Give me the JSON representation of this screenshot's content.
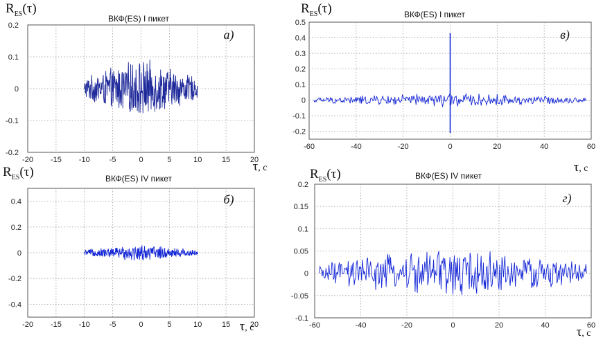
{
  "chart_data": [
    {
      "id": "a",
      "type": "line",
      "title": "ВКФ(ES) I пикет",
      "panel_label": "а)",
      "y_label_main": "R",
      "y_label_sub": "ES",
      "y_label_arg": "(τ)",
      "x_label_main": "",
      "x_label_unit": "",
      "xlim": [
        -20,
        20
      ],
      "ylim": [
        -0.2,
        0.2
      ],
      "x_ticks": [
        -20,
        -15,
        -10,
        -5,
        0,
        5,
        10,
        15,
        20
      ],
      "x_tick_labels": [
        "-20",
        "-15",
        "-10",
        "-5",
        "0",
        "5",
        "10",
        "15",
        "20"
      ],
      "y_ticks": [
        -0.2,
        -0.1,
        0,
        0.1,
        0.2
      ],
      "y_tick_labels": [
        "-0.2",
        "-0.1",
        "0",
        "0.1",
        "0.2"
      ],
      "grid": true,
      "color": "#1f2a9a",
      "series": [
        {
          "signal": "noise",
          "x_range": [
            -10,
            10
          ],
          "peak_amplitude": 0.1,
          "spike": null
        }
      ]
    },
    {
      "id": "v",
      "type": "line",
      "title": "ВКФ(ES) I пикет",
      "panel_label": "в)",
      "y_label_main": "R",
      "y_label_sub": "ES",
      "y_label_arg": "(τ)",
      "x_label_main": "τ",
      "x_label_unit": ", с",
      "xlim": [
        -60,
        60
      ],
      "ylim": [
        -0.25,
        0.5
      ],
      "x_ticks": [
        -60,
        -40,
        -20,
        0,
        20,
        40,
        60
      ],
      "x_tick_labels": [
        "-60",
        "-40",
        "-20",
        "0",
        "20",
        "40",
        "60"
      ],
      "y_ticks": [
        -0.2,
        -0.1,
        0,
        0.1,
        0.2,
        0.3,
        0.4,
        0.5
      ],
      "y_tick_labels": [
        "-0.2",
        "-0.1",
        "0",
        "0.1",
        "0.2",
        "0.3",
        "0.4",
        "0.5"
      ],
      "grid": true,
      "color": "#1426d6",
      "series": [
        {
          "signal": "noise",
          "x_range": [
            -58,
            58
          ],
          "peak_amplitude": 0.05,
          "spike": {
            "x": 0,
            "max": 0.43,
            "min": -0.21
          }
        }
      ]
    },
    {
      "id": "b",
      "type": "line",
      "title": "ВКФ(ES) IV пикет",
      "panel_label": "б)",
      "y_label_main": "R",
      "y_label_sub": "ES",
      "y_label_arg": "(τ)",
      "x_label_main": "τ",
      "x_label_unit": ", с",
      "xlim": [
        -20,
        20
      ],
      "ylim": [
        -0.5,
        0.5
      ],
      "x_ticks": [
        -20,
        -15,
        -10,
        -5,
        0,
        5,
        10,
        15,
        20
      ],
      "x_tick_labels": [
        "-20",
        "-15",
        "-10",
        "-5",
        "0",
        "5",
        "10",
        "15",
        "20"
      ],
      "y_ticks": [
        -0.4,
        -0.2,
        0,
        0.2,
        0.4
      ],
      "y_tick_labels": [
        "-0.4",
        "-0.2",
        "0",
        "0.2",
        "0.4"
      ],
      "grid": true,
      "color": "#1426d6",
      "series": [
        {
          "signal": "noise",
          "x_range": [
            -10,
            10
          ],
          "peak_amplitude": 0.07,
          "spike": null
        }
      ]
    },
    {
      "id": "g",
      "type": "line",
      "title": "ВКФ(ES) IV пикет",
      "panel_label": "г)",
      "y_label_main": "R",
      "y_label_sub": "ES",
      "y_label_arg": "(τ)",
      "x_label_main": "τ",
      "x_label_unit": ", с",
      "xlim": [
        -60,
        60
      ],
      "ylim": [
        -0.1,
        0.2
      ],
      "x_ticks": [
        -60,
        -40,
        -20,
        0,
        20,
        40,
        60
      ],
      "x_tick_labels": [
        "-60",
        "-40",
        "-20",
        "0",
        "20",
        "40",
        "60"
      ],
      "y_ticks": [
        -0.1,
        -0.05,
        0,
        0.05,
        0.1,
        0.15,
        0.2
      ],
      "y_tick_labels": [
        "-0.1",
        "-0.05",
        "0",
        "0.05",
        "0.1",
        "0.15",
        "0.2"
      ],
      "grid": true,
      "color": "#1426d6",
      "series": [
        {
          "signal": "noise",
          "x_range": [
            -58,
            58
          ],
          "peak_amplitude": 0.065,
          "spike": null
        }
      ]
    }
  ]
}
